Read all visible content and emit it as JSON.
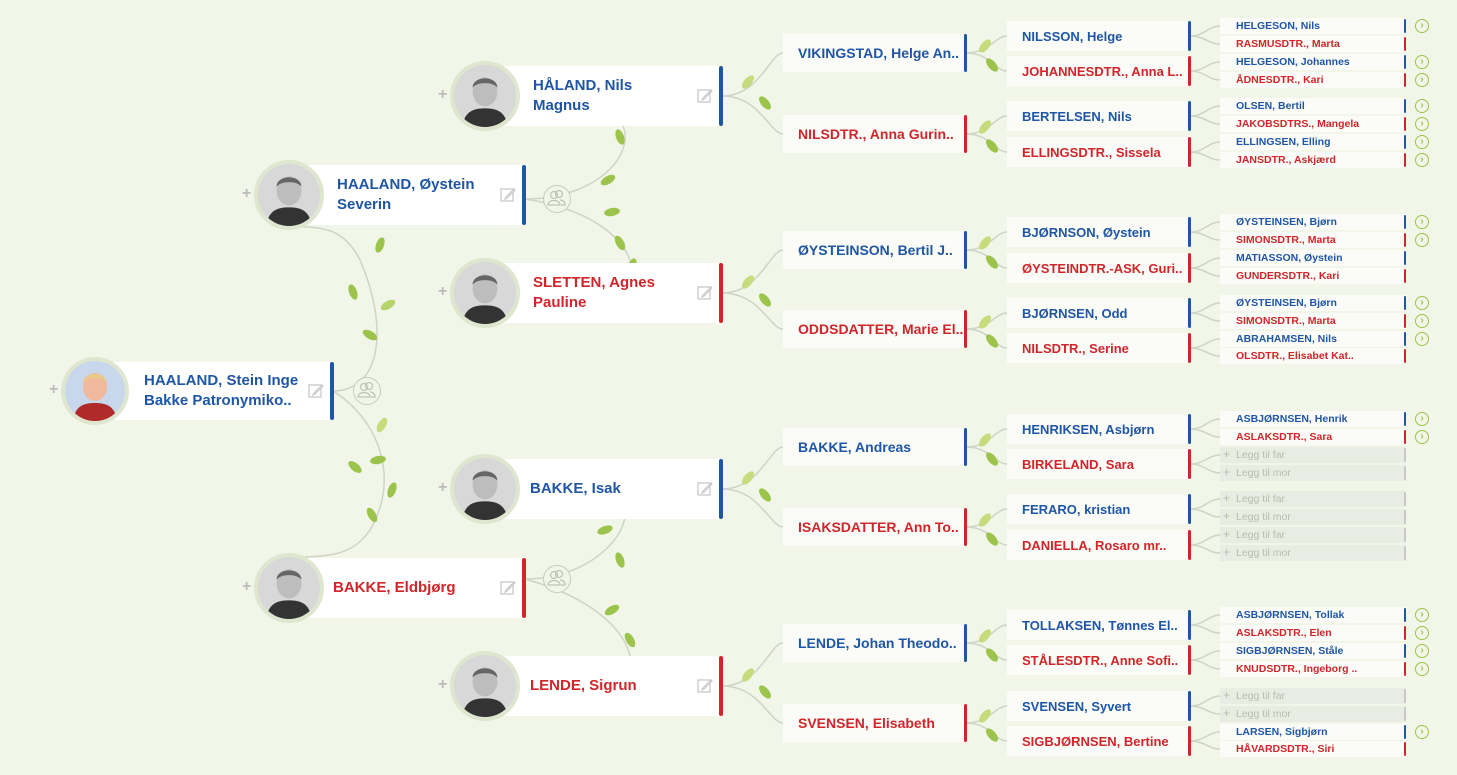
{
  "colors": {
    "male": "#1f56a5",
    "female": "#d0262b",
    "background": "#f1f6e8",
    "more_icon": "#9cc44c"
  },
  "root": {
    "line1": "HAALAND, Stein Inge",
    "line2": "Bakke Patronymiko..",
    "sex": "m"
  },
  "gen1": [
    {
      "line1": "HAALAND, Øystein",
      "line2": "Severin",
      "sex": "m"
    },
    {
      "line1": "BAKKE, Eldbjørg",
      "line2": "",
      "sex": "f"
    }
  ],
  "gen2": [
    {
      "line1": "HÅLAND, Nils",
      "line2": "Magnus",
      "sex": "m"
    },
    {
      "line1": "SLETTEN, Agnes",
      "line2": "Pauline",
      "sex": "f"
    },
    {
      "line1": "BAKKE, Isak",
      "line2": "",
      "sex": "m"
    },
    {
      "line1": "LENDE, Sigrun",
      "line2": "",
      "sex": "f"
    }
  ],
  "gen3": [
    {
      "name": "VIKINGSTAD, Helge An..",
      "sex": "m"
    },
    {
      "name": "NILSDTR., Anna Gurin..",
      "sex": "f"
    },
    {
      "name": "ØYSTEINSON, Bertil J..",
      "sex": "m"
    },
    {
      "name": "ODDSDATTER, Marie El..",
      "sex": "f"
    },
    {
      "name": "BAKKE, Andreas",
      "sex": "m"
    },
    {
      "name": "ISAKSDATTER, Ann To..",
      "sex": "f"
    },
    {
      "name": "LENDE, Johan Theodo..",
      "sex": "m"
    },
    {
      "name": "SVENSEN, Elisabeth",
      "sex": "f"
    }
  ],
  "gen4": [
    {
      "name": "NILSSON, Helge",
      "sex": "m"
    },
    {
      "name": "JOHANNESDTR., Anna L..",
      "sex": "f"
    },
    {
      "name": "BERTELSEN, Nils",
      "sex": "m"
    },
    {
      "name": "ELLINGSDTR., Sissela",
      "sex": "f"
    },
    {
      "name": "BJØRNSON, Øystein",
      "sex": "m"
    },
    {
      "name": "ØYSTEINDTR.-ASK, Guri..",
      "sex": "f"
    },
    {
      "name": "BJØRNSEN, Odd",
      "sex": "m"
    },
    {
      "name": "NILSDTR., Serine",
      "sex": "f"
    },
    {
      "name": "HENRIKSEN, Asbjørn",
      "sex": "m"
    },
    {
      "name": "BIRKELAND, Sara",
      "sex": "f"
    },
    {
      "name": "FERARO, kristian",
      "sex": "m"
    },
    {
      "name": "DANIELLA, Rosaro mr..",
      "sex": "f"
    },
    {
      "name": "TOLLAKSEN, Tønnes El..",
      "sex": "m"
    },
    {
      "name": "STÅLESDTR., Anne Sofi..",
      "sex": "f"
    },
    {
      "name": "SVENSEN, Syvert",
      "sex": "m"
    },
    {
      "name": "SIGBJØRNSEN, Bertine",
      "sex": "f"
    }
  ],
  "gen5": [
    {
      "name": "HELGESON, Nils",
      "sex": "m",
      "more": true
    },
    {
      "name": "RASMUSDTR., Marta",
      "sex": "f",
      "more": false
    },
    {
      "name": "HELGESON, Johannes",
      "sex": "m",
      "more": true
    },
    {
      "name": "ÅDNESDTR., Kari",
      "sex": "f",
      "more": true
    },
    {
      "name": "OLSEN, Bertil",
      "sex": "m",
      "more": true
    },
    {
      "name": "JAKOBSDTRS., Mangela",
      "sex": "f",
      "more": true
    },
    {
      "name": "ELLINGSEN, Elling",
      "sex": "m",
      "more": true
    },
    {
      "name": "JANSDTR., Askjærd",
      "sex": "f",
      "more": true
    },
    {
      "name": "ØYSTEINSEN, Bjørn",
      "sex": "m",
      "more": true
    },
    {
      "name": "SIMONSDTR., Marta",
      "sex": "f",
      "more": true
    },
    {
      "name": "MATIASSON, Øystein",
      "sex": "m",
      "more": false
    },
    {
      "name": "GUNDERSDTR., Kari",
      "sex": "f",
      "more": false
    },
    {
      "name": "ØYSTEINSEN, Bjørn",
      "sex": "m",
      "more": true
    },
    {
      "name": "SIMONSDTR., Marta",
      "sex": "f",
      "more": true
    },
    {
      "name": "ABRAHAMSEN, Nils",
      "sex": "m",
      "more": true
    },
    {
      "name": "OLSDTR., Elisabet Kat..",
      "sex": "f",
      "more": false
    },
    {
      "name": "ASBJØRNSEN, Henrik",
      "sex": "m",
      "more": true
    },
    {
      "name": "ASLAKSDTR., Sara",
      "sex": "f",
      "more": true
    },
    {
      "name": "Legg til far",
      "sex": "m",
      "placeholder": true
    },
    {
      "name": "Legg til mor",
      "sex": "f",
      "placeholder": true
    },
    {
      "name": "Legg til far",
      "sex": "m",
      "placeholder": true
    },
    {
      "name": "Legg til mor",
      "sex": "f",
      "placeholder": true
    },
    {
      "name": "Legg til far",
      "sex": "m",
      "placeholder": true
    },
    {
      "name": "Legg til mor",
      "sex": "f",
      "placeholder": true
    },
    {
      "name": "ASBJØRNSEN, Tollak",
      "sex": "m",
      "more": true
    },
    {
      "name": "ASLAKSDTR., Elen",
      "sex": "f",
      "more": true
    },
    {
      "name": "SIGBJØRNSEN, Ståle",
      "sex": "m",
      "more": true
    },
    {
      "name": "KNUDSDTR., Ingeborg ..",
      "sex": "f",
      "more": true
    },
    {
      "name": "Legg til far",
      "sex": "m",
      "placeholder": true
    },
    {
      "name": "Legg til mor",
      "sex": "f",
      "placeholder": true
    },
    {
      "name": "LARSEN, Sigbjørn",
      "sex": "m",
      "more": true
    },
    {
      "name": "HÅVARDSDTR., Siri",
      "sex": "f",
      "more": false
    }
  ],
  "icons": {
    "plus": "+",
    "more": "›",
    "edit": "edit-icon",
    "couple": "couple-icon"
  }
}
